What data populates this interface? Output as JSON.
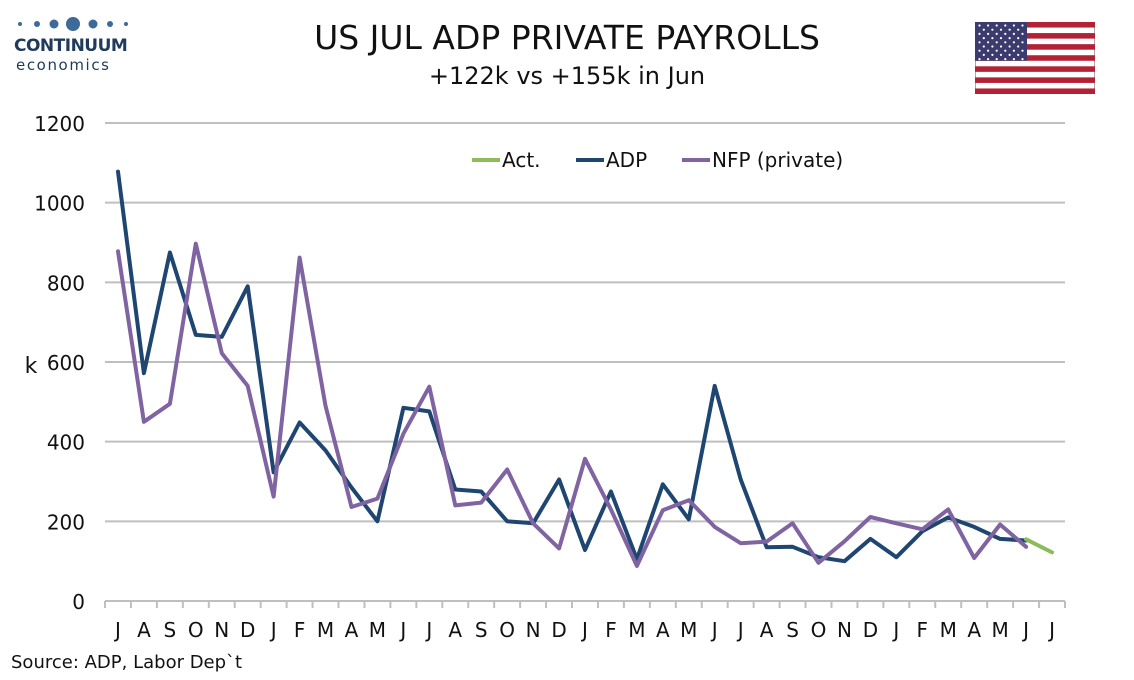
{
  "header": {
    "logo_word": "CONTINUUM",
    "logo_sub": "economics",
    "title": "US JUL ADP PRIVATE PAYROLLS",
    "subtitle": "+122k vs +155k in Jun"
  },
  "footer": {
    "source": "Source: ADP, Labor Dep`t"
  },
  "flag": {
    "name": "us-flag",
    "red": "#b22234",
    "blue": "#3c3b6e",
    "white": "#ffffff"
  },
  "chart_data": {
    "type": "line",
    "ylabel": "k",
    "ylim": [
      0,
      1200
    ],
    "yticks": [
      0,
      200,
      400,
      600,
      800,
      1000,
      1200
    ],
    "grid": true,
    "legend_position": "top-center",
    "categories": [
      "J",
      "A",
      "S",
      "O",
      "N",
      "D",
      "J",
      "F",
      "M",
      "A",
      "M",
      "J",
      "J",
      "A",
      "S",
      "O",
      "N",
      "D",
      "J",
      "F",
      "M",
      "A",
      "M",
      "J",
      "J",
      "A",
      "S",
      "O",
      "N",
      "D",
      "J",
      "F",
      "M",
      "A",
      "M",
      "J",
      "J"
    ],
    "series": [
      {
        "name": "Act.",
        "color": "#8dbb5a",
        "values": [
          null,
          null,
          null,
          null,
          null,
          null,
          null,
          null,
          null,
          null,
          null,
          null,
          null,
          null,
          null,
          null,
          null,
          null,
          null,
          null,
          null,
          null,
          null,
          null,
          null,
          null,
          null,
          null,
          null,
          null,
          null,
          null,
          null,
          null,
          null,
          155,
          122
        ]
      },
      {
        "name": "ADP",
        "color": "#1e4670",
        "values": [
          1078,
          572,
          875,
          668,
          663,
          790,
          323,
          448,
          378,
          285,
          200,
          485,
          476,
          280,
          275,
          200,
          195,
          305,
          128,
          275,
          105,
          293,
          205,
          540,
          305,
          135,
          136,
          110,
          100,
          156,
          110,
          175,
          210,
          186,
          156,
          152,
          null
        ]
      },
      {
        "name": "NFP (private)",
        "color": "#8064a2",
        "values": [
          878,
          450,
          495,
          897,
          622,
          540,
          262,
          862,
          490,
          236,
          257,
          420,
          538,
          240,
          247,
          330,
          195,
          132,
          357,
          230,
          88,
          228,
          253,
          186,
          145,
          149,
          195,
          96,
          150,
          211,
          195,
          180,
          230,
          108,
          192,
          136,
          null
        ]
      }
    ]
  }
}
